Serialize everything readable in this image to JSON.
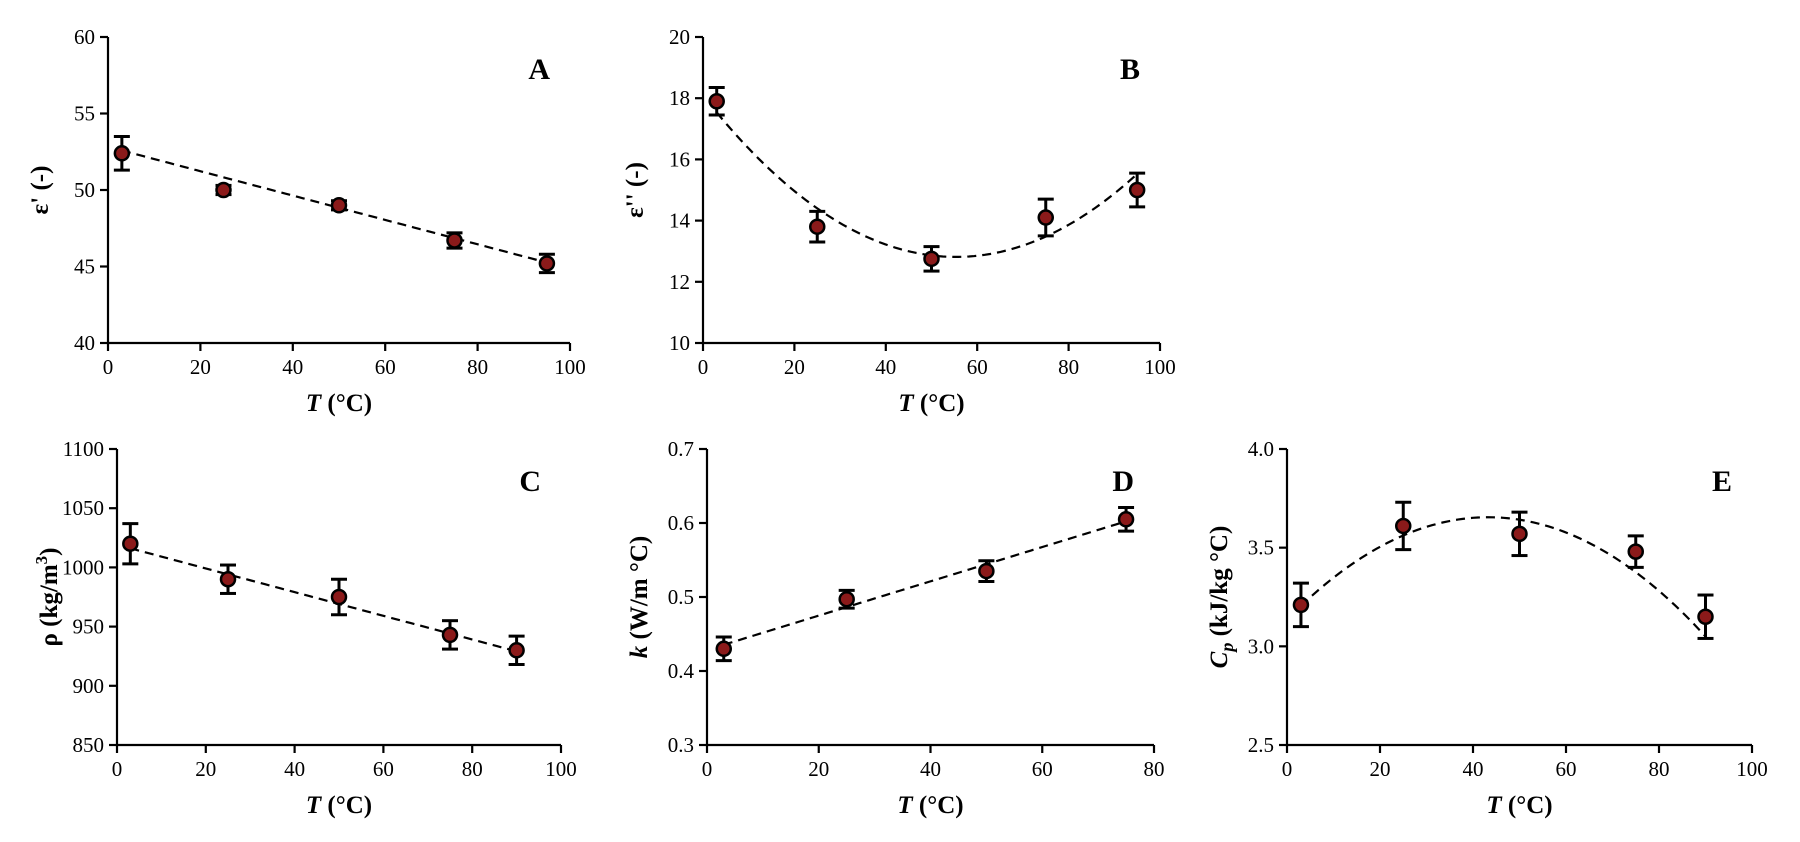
{
  "chart_data": [
    {
      "id": "A",
      "type": "scatter",
      "panel_label": "A",
      "xlabel_symbol": "T",
      "xlabel_unit": " (°C)",
      "ylabel_symbol": "ε' (-)",
      "ylabel_unit": "",
      "xlim": [
        0,
        100
      ],
      "ylim": [
        40,
        60
      ],
      "xticks": [
        0,
        20,
        40,
        60,
        80,
        100
      ],
      "yticks": [
        40,
        45,
        50,
        55,
        60
      ],
      "x": [
        3,
        25,
        50,
        75,
        95
      ],
      "y": [
        52.4,
        50.0,
        49.0,
        46.7,
        45.2
      ],
      "yerr": [
        1.1,
        0.3,
        0.3,
        0.5,
        0.6
      ],
      "fit": {
        "type": "linear",
        "coef": [
          52.82,
          -0.0796
        ]
      }
    },
    {
      "id": "B",
      "type": "scatter",
      "panel_label": "B",
      "xlabel_symbol": "T",
      "xlabel_unit": " (°C)",
      "ylabel_symbol": "ε'' (-)",
      "ylabel_unit": "",
      "xlim": [
        0,
        100
      ],
      "ylim": [
        10,
        20
      ],
      "xticks": [
        0,
        20,
        40,
        60,
        80,
        100
      ],
      "yticks": [
        10,
        12,
        14,
        16,
        18,
        20
      ],
      "x": [
        3,
        25,
        50,
        75,
        95
      ],
      "y": [
        17.9,
        13.8,
        12.75,
        14.1,
        15.0
      ],
      "yerr": [
        0.45,
        0.5,
        0.4,
        0.6,
        0.55
      ],
      "fit": {
        "type": "quadratic",
        "coef": [
          18.09,
          -0.1907,
          0.001723
        ]
      }
    },
    {
      "id": "C",
      "type": "scatter",
      "panel_label": "C",
      "xlabel_symbol": "T",
      "xlabel_unit": " (°C)",
      "ylabel_symbol": "ρ (kg/m",
      "ylabel_sup": "3",
      "ylabel_unit": ")",
      "xlim": [
        0,
        100
      ],
      "ylim": [
        850,
        1100
      ],
      "xticks": [
        0,
        20,
        40,
        60,
        80,
        100
      ],
      "yticks": [
        850,
        900,
        950,
        1000,
        1050,
        1100
      ],
      "x": [
        3,
        25,
        50,
        75,
        90
      ],
      "y": [
        1020,
        990,
        975,
        943,
        930
      ],
      "yerr": [
        17,
        12,
        15,
        12,
        12
      ],
      "fit": {
        "type": "linear",
        "coef": [
          1019.12,
          -1.0
        ]
      }
    },
    {
      "id": "D",
      "type": "scatter",
      "panel_label": "D",
      "xlabel_symbol": "T",
      "xlabel_unit": " (°C)",
      "ylabel_symbol": "k",
      "ylabel_unit": " (W/m °C)",
      "xlim": [
        0,
        80
      ],
      "ylim": [
        0.3,
        0.7
      ],
      "xticks": [
        0,
        20,
        40,
        60,
        80
      ],
      "yticks": [
        0.3,
        0.4,
        0.5,
        0.6,
        0.7
      ],
      "x": [
        3,
        25,
        50,
        75
      ],
      "y": [
        0.43,
        0.497,
        0.535,
        0.605
      ],
      "yerr": [
        0.016,
        0.012,
        0.014,
        0.016
      ],
      "fit": {
        "type": "linear",
        "coef": [
          0.4285,
          0.002317
        ]
      }
    },
    {
      "id": "E",
      "type": "scatter",
      "panel_label": "E",
      "xlabel_symbol": "T",
      "xlabel_unit": " (°C)",
      "ylabel_symbol": "C",
      "ylabel_sub": "p",
      "ylabel_unit": " (kJ/kg °C)",
      "xlim": [
        0,
        100
      ],
      "ylim": [
        2.5,
        4.0
      ],
      "xticks": [
        0,
        20,
        40,
        60,
        80,
        100
      ],
      "yticks": [
        2.5,
        3.0,
        3.5,
        4.0
      ],
      "x": [
        3,
        25,
        50,
        75,
        90
      ],
      "y": [
        3.21,
        3.61,
        3.57,
        3.48,
        3.15
      ],
      "yerr": [
        0.11,
        0.12,
        0.11,
        0.08,
        0.11
      ],
      "fit": {
        "type": "quadratic",
        "coef": [
          3.136,
          0.02395,
          -0.0002767
        ]
      }
    }
  ]
}
